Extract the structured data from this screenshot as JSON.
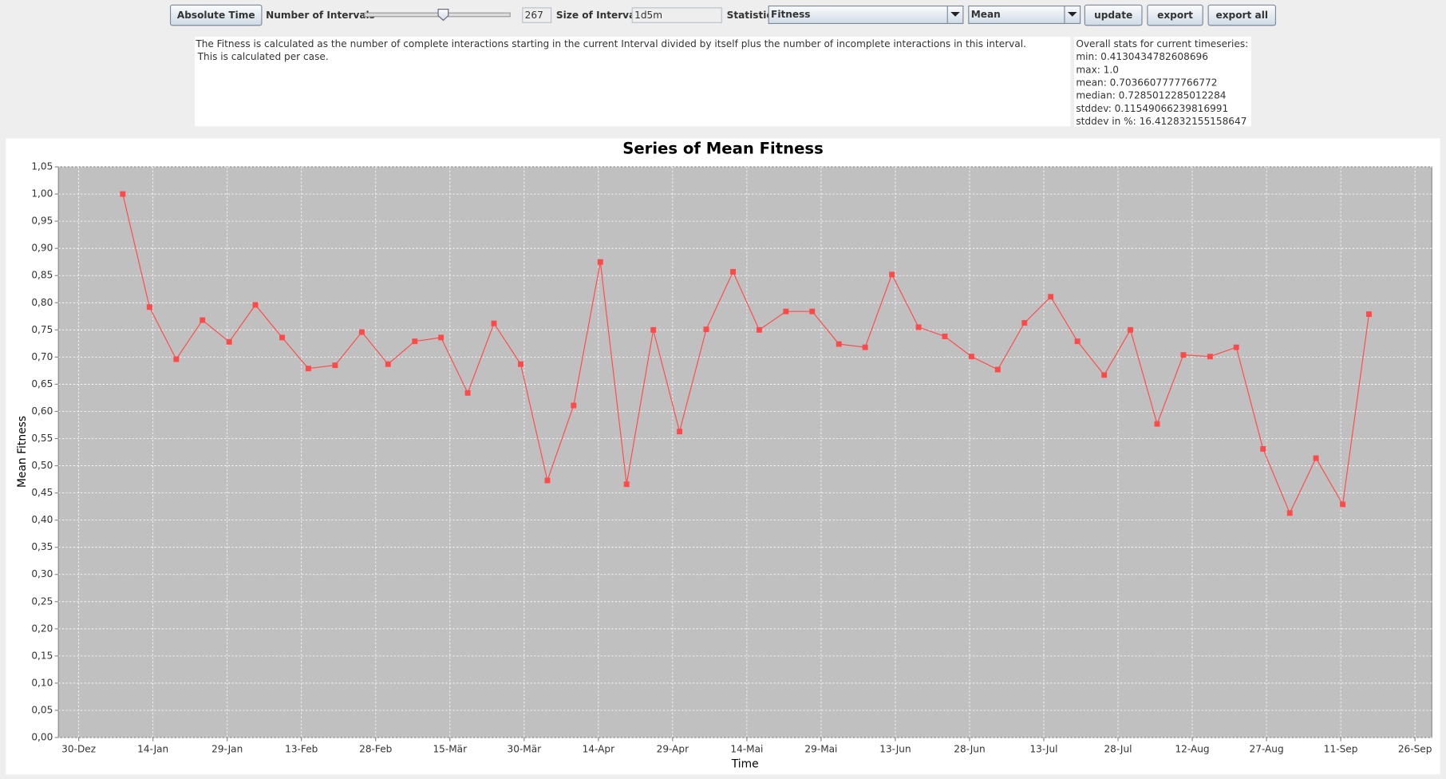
{
  "toolbar": {
    "time_button": "Absolute Time",
    "intervals_label": "Number of Intervals",
    "intervals_value": "267",
    "size_label": "Size of Intervals",
    "size_value": "1d5m",
    "statistic_label": "Statistic",
    "statistic_select": "Fitness",
    "aggregate_select": "Mean",
    "buttons": [
      "update",
      "export",
      "export all"
    ]
  },
  "description": {
    "lines": [
      "The Fitness is calculated as the number of complete interactions starting in the current Interval divided by itself plus the number of incomplete interactions in this interval.",
      "This is calculated per case."
    ]
  },
  "stats": {
    "lines": [
      "Overall stats for current timeseries:",
      "min: 0.4130434782608696",
      "max: 1.0",
      "mean: 0.7036607777766772",
      "median: 0.7285012285012284",
      "stddev: 0.11549066239816991",
      "stddev in %: 16.412832155158647"
    ]
  },
  "chart_data": {
    "type": "line",
    "title": "Series of Mean Fitness",
    "x_label": "Time",
    "y_label": "Mean Fitness",
    "color": "#ff4a4a",
    "marker": "square",
    "grid": true,
    "x": [
      8.9,
      14.3,
      19.7,
      25.0,
      30.4,
      35.7,
      41.1,
      46.4,
      51.8,
      57.2,
      62.5,
      67.9,
      73.2,
      78.6,
      83.9,
      89.3,
      94.7,
      100.0,
      105.4,
      110.7,
      116.1,
      121.4,
      126.8,
      132.2,
      137.5,
      142.9,
      148.2,
      153.6,
      158.9,
      164.3,
      169.7,
      175.0,
      180.4,
      185.7,
      191.1,
      196.4,
      201.8,
      207.2,
      212.5,
      217.9,
      223.2,
      228.6,
      233.9,
      239.3,
      244.7,
      250.0,
      255.4,
      260.7
    ],
    "values": [
      1.0,
      0.792,
      0.696,
      0.768,
      0.728,
      0.796,
      0.736,
      0.679,
      0.685,
      0.746,
      0.687,
      0.729,
      0.736,
      0.634,
      0.762,
      0.687,
      0.473,
      0.611,
      0.875,
      0.466,
      0.75,
      0.563,
      0.751,
      0.857,
      0.75,
      0.784,
      0.784,
      0.724,
      0.718,
      0.852,
      0.755,
      0.738,
      0.701,
      0.677,
      0.763,
      0.811,
      0.729,
      0.667,
      0.75,
      0.577,
      0.704,
      0.701,
      0.718,
      0.531,
      0.413,
      0.514,
      0.429,
      0.779
    ],
    "xlim": [
      -4.1,
      273.4
    ],
    "xticks": [
      {
        "value": 0,
        "label": "30-Dez"
      },
      {
        "value": 15,
        "label": "14-Jan"
      },
      {
        "value": 30,
        "label": "29-Jan"
      },
      {
        "value": 45,
        "label": "13-Feb"
      },
      {
        "value": 60,
        "label": "28-Feb"
      },
      {
        "value": 75,
        "label": "15-Mär"
      },
      {
        "value": 90,
        "label": "30-Mär"
      },
      {
        "value": 105,
        "label": "14-Apr"
      },
      {
        "value": 120,
        "label": "29-Apr"
      },
      {
        "value": 135,
        "label": "14-Mai"
      },
      {
        "value": 150,
        "label": "29-Mai"
      },
      {
        "value": 165,
        "label": "13-Jun"
      },
      {
        "value": 180,
        "label": "28-Jun"
      },
      {
        "value": 195,
        "label": "13-Jul"
      },
      {
        "value": 210,
        "label": "28-Jul"
      },
      {
        "value": 225,
        "label": "12-Aug"
      },
      {
        "value": 240,
        "label": "27-Aug"
      },
      {
        "value": 255,
        "label": "11-Sep"
      },
      {
        "value": 270,
        "label": "26-Sep"
      }
    ],
    "ylim": [
      0,
      1.05
    ],
    "yticks": [
      {
        "value": 0,
        "label": "0,00"
      },
      {
        "value": 0.05,
        "label": "0,05"
      },
      {
        "value": 0.1,
        "label": "0,10"
      },
      {
        "value": 0.15,
        "label": "0,15"
      },
      {
        "value": 0.2,
        "label": "0,20"
      },
      {
        "value": 0.25,
        "label": "0,25"
      },
      {
        "value": 0.3,
        "label": "0,30"
      },
      {
        "value": 0.35,
        "label": "0,35"
      },
      {
        "value": 0.4,
        "label": "0,40"
      },
      {
        "value": 0.45,
        "label": "0,45"
      },
      {
        "value": 0.5,
        "label": "0,50"
      },
      {
        "value": 0.55,
        "label": "0,55"
      },
      {
        "value": 0.6,
        "label": "0,60"
      },
      {
        "value": 0.65,
        "label": "0,65"
      },
      {
        "value": 0.7,
        "label": "0,70"
      },
      {
        "value": 0.75,
        "label": "0,75"
      },
      {
        "value": 0.8,
        "label": "0,80"
      },
      {
        "value": 0.85,
        "label": "0,85"
      },
      {
        "value": 0.9,
        "label": "0,90"
      },
      {
        "value": 0.95,
        "label": "0,95"
      },
      {
        "value": 1.0,
        "label": "1,00"
      },
      {
        "value": 1.05,
        "label": "1,05"
      }
    ]
  }
}
